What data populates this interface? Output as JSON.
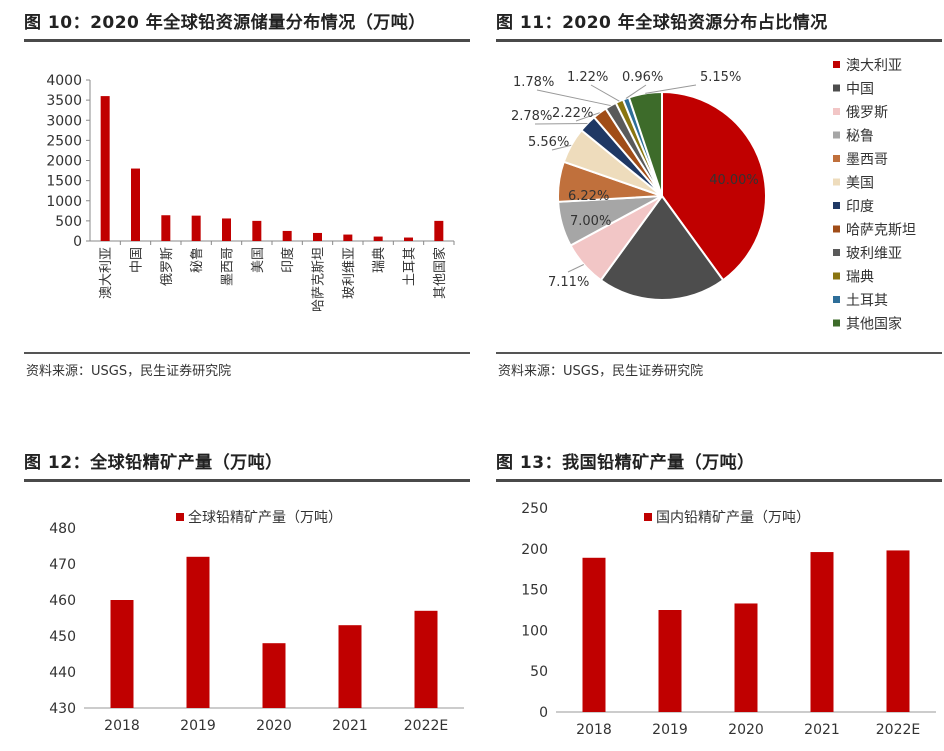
{
  "fig10": {
    "title": "图 10：2020 年全球铅资源储量分布情况（万吨）",
    "source": "资料来源：USGS，民生证券研究院"
  },
  "fig11": {
    "title": "图 11：2020 年全球铅资源分布占比情况",
    "source": "资料来源：USGS，民生证券研究院"
  },
  "fig12": {
    "title": "图 12：全球铅精矿产量（万吨）"
  },
  "fig13": {
    "title": "图 13：我国铅精矿产量（万吨）"
  },
  "chart_data": [
    {
      "id": "fig10",
      "type": "bar",
      "title": "图 10：2020 年全球铅资源储量分布情况（万吨）",
      "categories": [
        "澳大利亚",
        "中国",
        "俄罗斯",
        "秘鲁",
        "墨西哥",
        "美国",
        "印度",
        "哈萨克斯坦",
        "玻利维亚",
        "瑞典",
        "土耳其",
        "其他国家"
      ],
      "values": [
        3600,
        1800,
        640,
        630,
        560,
        500,
        250,
        200,
        160,
        110,
        86,
        500
      ],
      "yticks": [
        0,
        500,
        1000,
        1500,
        2000,
        2500,
        3000,
        3500,
        4000
      ],
      "ylim": [
        0,
        4000
      ],
      "color": "#c00000",
      "grid": false
    },
    {
      "id": "fig11",
      "type": "pie",
      "title": "图 11：2020 年全球铅资源分布占比情况",
      "labels": [
        "澳大利亚",
        "中国",
        "俄罗斯",
        "秘鲁",
        "墨西哥",
        "美国",
        "印度",
        "哈萨克斯坦",
        "玻利维亚",
        "瑞典",
        "土耳其",
        "其他国家"
      ],
      "values": [
        40.0,
        20.0,
        7.11,
        7.0,
        6.22,
        5.56,
        2.78,
        2.22,
        1.78,
        1.22,
        0.96,
        5.15
      ],
      "value_labels": [
        "40.00%",
        "",
        "7.11%",
        "7.00%",
        "6.22%",
        "5.56%",
        "2.78%",
        "2.22%",
        "1.78%",
        "1.22%",
        "0.96%",
        "5.15%"
      ],
      "colors": [
        "#c00000",
        "#4d4d4d",
        "#f2c6c6",
        "#a6a6a6",
        "#c0703c",
        "#eedcbc",
        "#1f3864",
        "#a04d18",
        "#5a5a5a",
        "#8a7510",
        "#2e6e99",
        "#3d6b2a"
      ],
      "legend_position": "right"
    },
    {
      "id": "fig12",
      "type": "bar",
      "title": "图 12：全球铅精矿产量（万吨）",
      "legend": [
        "全球铅精矿产量（万吨）"
      ],
      "categories": [
        "2018",
        "2019",
        "2020",
        "2021",
        "2022E"
      ],
      "series": [
        {
          "name": "全球铅精矿产量（万吨）",
          "values": [
            460,
            472,
            448,
            453,
            457
          ]
        }
      ],
      "yticks": [
        430,
        440,
        450,
        460,
        470,
        480
      ],
      "ylim": [
        430,
        480
      ],
      "color": "#c00000",
      "legend_position": "top-center",
      "grid": false
    },
    {
      "id": "fig13",
      "type": "bar",
      "title": "图 13：我国铅精矿产量（万吨）",
      "legend": [
        "国内铅精矿产量（万吨）"
      ],
      "categories": [
        "2018",
        "2019",
        "2020",
        "2021",
        "2022E"
      ],
      "series": [
        {
          "name": "国内铅精矿产量（万吨）",
          "values": [
            189,
            125,
            133,
            196,
            198
          ]
        }
      ],
      "yticks": [
        0,
        50,
        100,
        150,
        200,
        250
      ],
      "ylim": [
        0,
        250
      ],
      "color": "#c00000",
      "legend_position": "top-center",
      "grid": false
    }
  ]
}
